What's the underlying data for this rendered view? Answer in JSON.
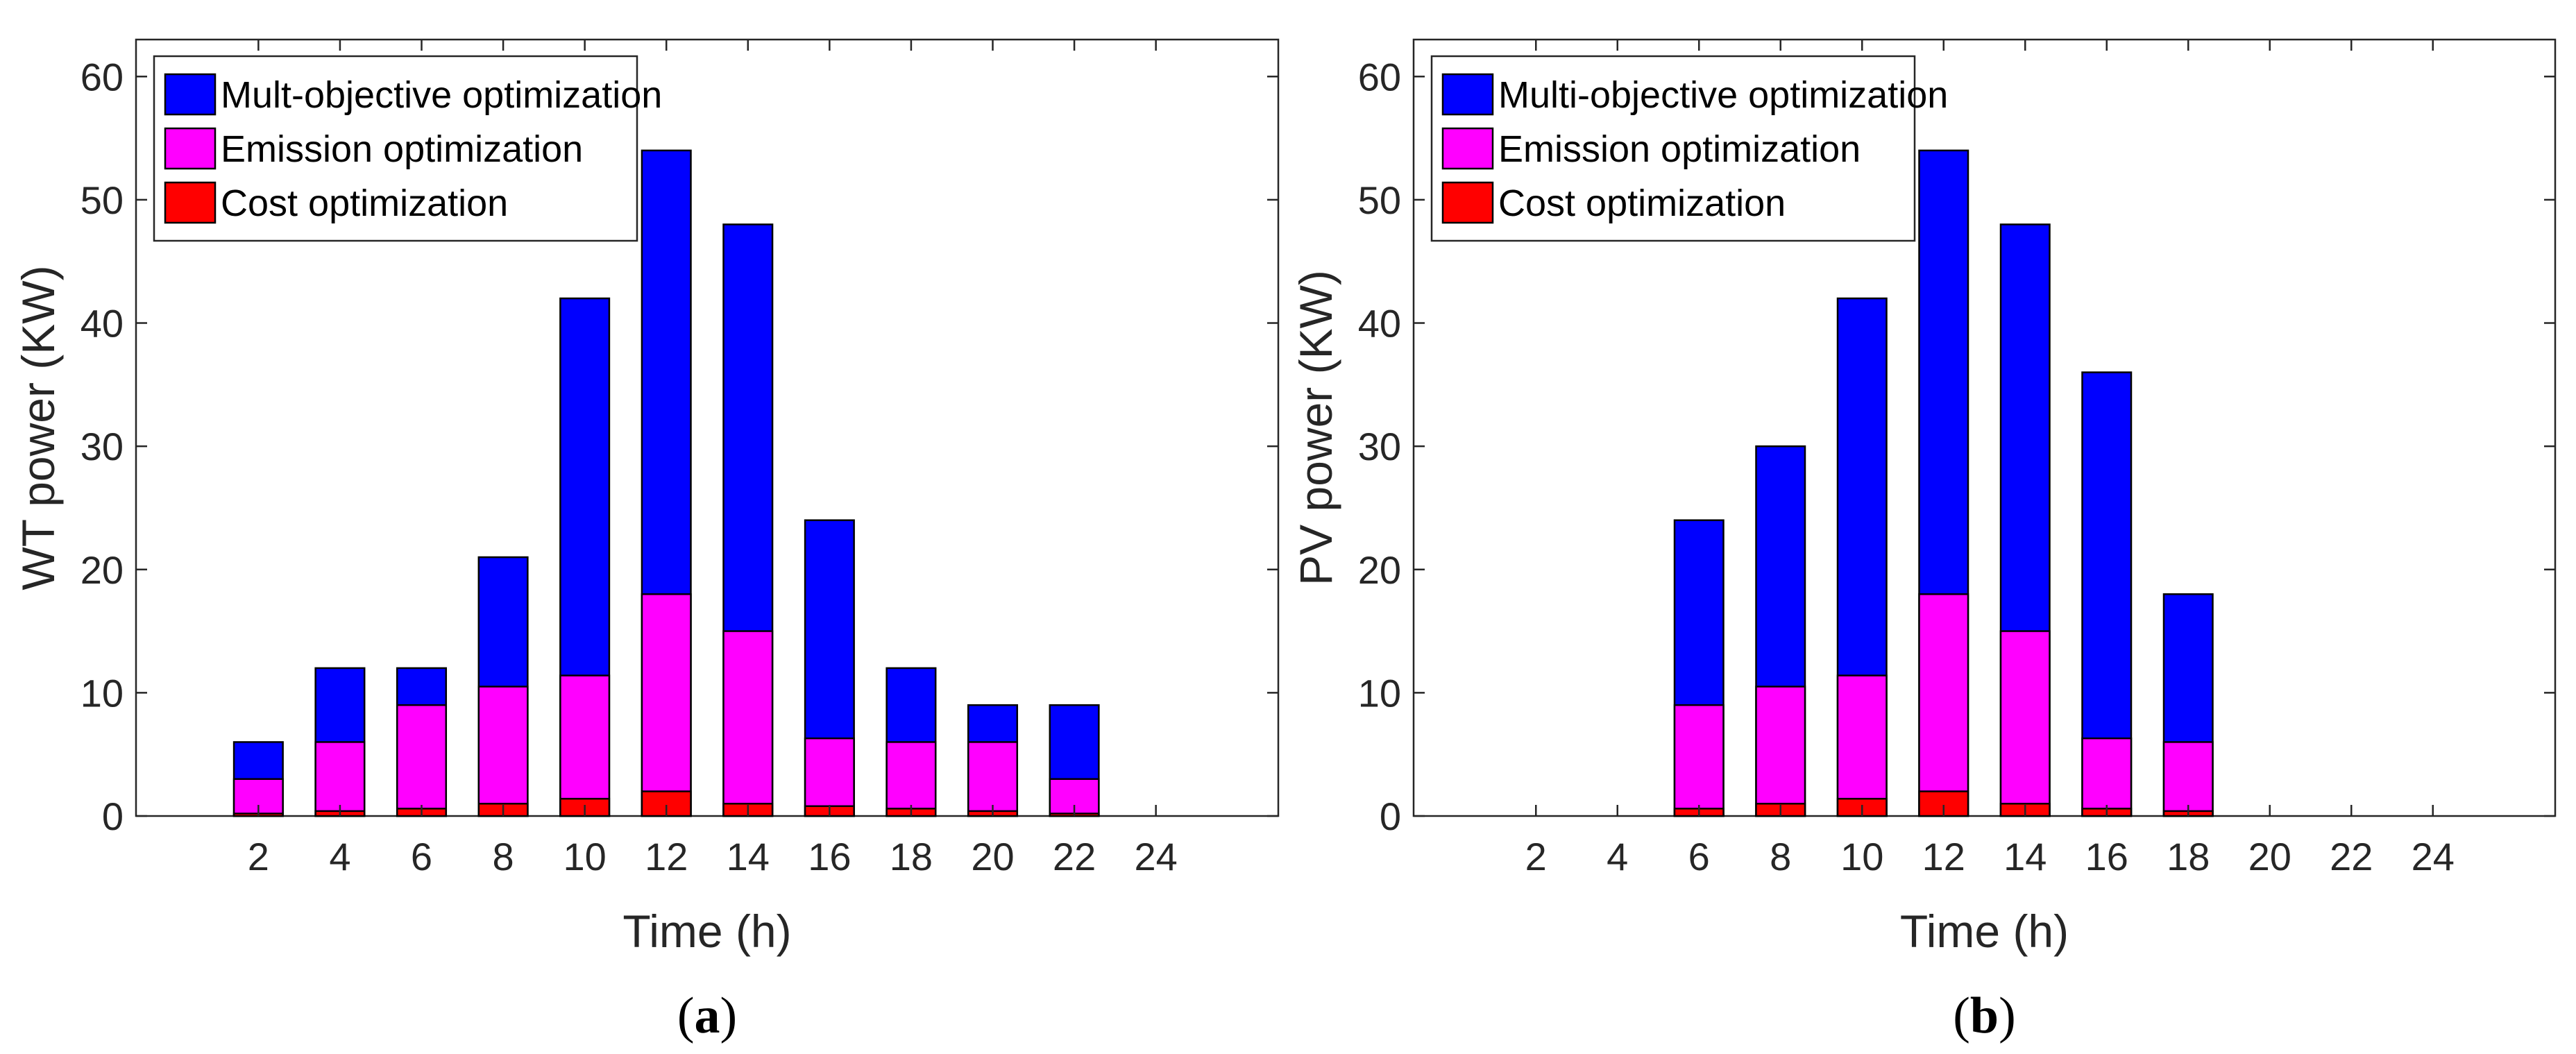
{
  "colors": {
    "multi": "#0000ff",
    "emission": "#ff00ff",
    "cost": "#ff0000",
    "axis": "#262626",
    "bar_edge": "#000000"
  },
  "chart_data": [
    {
      "type": "bar",
      "stacking": "overlay",
      "panel_label": "(a)",
      "panel_letter": "a",
      "xlabel": "Time (h)",
      "ylabel": "WT power (KW)",
      "ylim": [
        0,
        63
      ],
      "xlim": [
        -1,
        27
      ],
      "x_ticks": [
        2,
        4,
        6,
        8,
        10,
        12,
        14,
        16,
        18,
        20,
        22,
        24
      ],
      "y_ticks": [
        0,
        10,
        20,
        30,
        40,
        50,
        60
      ],
      "bar_width": 1.2,
      "grid": false,
      "legend_position": "top-left",
      "x": [
        1,
        2,
        3,
        4,
        5,
        6,
        7,
        8,
        9,
        10,
        11,
        12,
        13,
        14,
        15,
        16,
        17,
        18,
        19,
        20,
        21,
        22,
        23,
        24
      ],
      "series": [
        {
          "name": "Mult-objective optimization",
          "color": "#0000ff",
          "values": [
            0,
            6,
            0,
            12,
            0,
            12,
            0,
            21,
            0,
            42,
            0,
            54,
            0,
            48,
            0,
            24,
            0,
            12,
            0,
            9,
            0,
            9,
            0,
            0
          ]
        },
        {
          "name": "Emission optimization",
          "color": "#ff00ff",
          "values": [
            0,
            3,
            0,
            6,
            0,
            9,
            0,
            10.5,
            0,
            11.4,
            0,
            18,
            0,
            15,
            0,
            6.3,
            0,
            6,
            0,
            6,
            0,
            3,
            0,
            0
          ]
        },
        {
          "name": "Cost optimization",
          "color": "#ff0000",
          "values": [
            0,
            0.2,
            0,
            0.4,
            0,
            0.6,
            0,
            1,
            0,
            1.4,
            0,
            2,
            0,
            1,
            0,
            0.8,
            0,
            0.6,
            0,
            0.4,
            0,
            0.2,
            0,
            0
          ]
        }
      ]
    },
    {
      "type": "bar",
      "stacking": "overlay",
      "panel_label": "(b)",
      "panel_letter": "b",
      "xlabel": "Time (h)",
      "ylabel": "PV power (KW)",
      "ylim": [
        0,
        63
      ],
      "xlim": [
        -1,
        27
      ],
      "x_ticks": [
        2,
        4,
        6,
        8,
        10,
        12,
        14,
        16,
        18,
        20,
        22,
        24
      ],
      "y_ticks": [
        0,
        10,
        20,
        30,
        40,
        50,
        60
      ],
      "bar_width": 1.2,
      "grid": false,
      "legend_position": "top-left",
      "x": [
        1,
        2,
        3,
        4,
        5,
        6,
        7,
        8,
        9,
        10,
        11,
        12,
        13,
        14,
        15,
        16,
        17,
        18,
        19,
        20,
        21,
        22,
        23,
        24
      ],
      "series": [
        {
          "name": "Multi-objective optimization",
          "color": "#0000ff",
          "values": [
            0,
            0,
            0,
            0,
            0,
            24,
            0,
            30,
            0,
            42,
            0,
            54,
            0,
            48,
            0,
            36,
            0,
            18,
            0,
            0,
            0,
            0,
            0,
            0
          ]
        },
        {
          "name": "Emission optimization",
          "color": "#ff00ff",
          "values": [
            0,
            0,
            0,
            0,
            0,
            9,
            0,
            10.5,
            0,
            11.4,
            0,
            18,
            0,
            15,
            0,
            6.3,
            0,
            6,
            0,
            0,
            0,
            0,
            0,
            0
          ]
        },
        {
          "name": "Cost optimization",
          "color": "#ff0000",
          "values": [
            0,
            0,
            0,
            0,
            0,
            0.6,
            0,
            1,
            0,
            1.4,
            0,
            2,
            0,
            1,
            0,
            0.6,
            0,
            0.4,
            0,
            0,
            0,
            0,
            0,
            0
          ]
        }
      ]
    }
  ]
}
